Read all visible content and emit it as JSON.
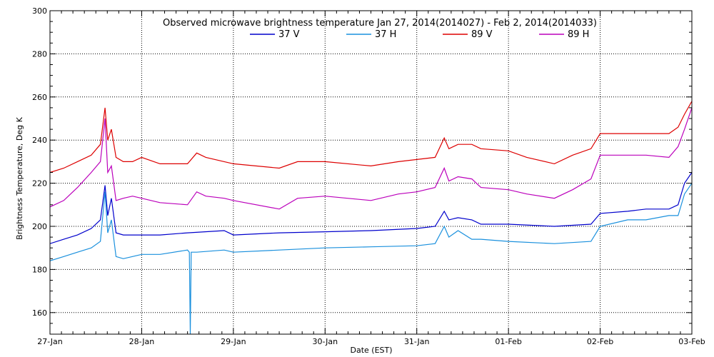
{
  "chart_data": {
    "type": "line",
    "title": "Observed microwave brightness temperature Jan 27, 2014(2014027) - Feb  2, 2014(2014033)",
    "xlabel": "Date (EST)",
    "ylabel": "Brightness Temperature, Deg K",
    "ylim": [
      150,
      300
    ],
    "yticks": [
      160,
      180,
      200,
      220,
      240,
      260,
      280,
      300
    ],
    "xlim": [
      0,
      7
    ],
    "x_tick_labels": [
      "27-Jan",
      "28-Jan",
      "29-Jan",
      "30-Jan",
      "31-Jan",
      "01-Feb",
      "02-Feb",
      "03-Feb"
    ],
    "grid": true,
    "legend_placement": "top-center",
    "x_unit_note": "x values are days since 27-Jan 00:00 EST",
    "series": [
      {
        "name": "37 V",
        "color": "#0000cc",
        "x": [
          0,
          0.15,
          0.3,
          0.45,
          0.55,
          0.6,
          0.63,
          0.67,
          0.72,
          0.8,
          0.9,
          1.0,
          1.2,
          1.5,
          1.9,
          2.0,
          2.5,
          3.0,
          3.5,
          4.0,
          4.2,
          4.3,
          4.35,
          4.45,
          4.6,
          4.7,
          5.0,
          5.5,
          5.9,
          6.0,
          6.3,
          6.5,
          6.75,
          6.85,
          6.92,
          7.0
        ],
        "y": [
          192,
          194,
          196,
          199,
          203,
          219,
          205,
          213,
          197,
          196,
          196,
          196,
          196,
          197,
          198,
          196,
          197,
          197.5,
          198,
          199,
          200,
          207,
          203,
          204,
          203,
          201,
          201,
          200,
          201,
          206,
          207,
          208,
          208,
          210,
          220,
          225
        ]
      },
      {
        "name": "37 H",
        "color": "#1a90dd",
        "x": [
          0,
          0.15,
          0.3,
          0.45,
          0.55,
          0.6,
          0.63,
          0.67,
          0.72,
          0.8,
          0.9,
          1.0,
          1.2,
          1.5,
          1.52,
          1.53,
          1.54,
          1.6,
          1.9,
          2.0,
          2.5,
          3.0,
          3.5,
          4.0,
          4.2,
          4.3,
          4.35,
          4.45,
          4.6,
          4.7,
          5.0,
          5.5,
          5.9,
          6.0,
          6.3,
          6.5,
          6.75,
          6.85,
          6.92,
          7.0
        ],
        "y": [
          184,
          186,
          188,
          190,
          193,
          216,
          197,
          203,
          186,
          185,
          186,
          187,
          187,
          189,
          188,
          150,
          188,
          188,
          189,
          188,
          189,
          190,
          190.5,
          191,
          192,
          200,
          195,
          198,
          194,
          194,
          193,
          192,
          193,
          200,
          203,
          203,
          205,
          205,
          215,
          220
        ]
      },
      {
        "name": "89 V",
        "color": "#dd0000",
        "x": [
          0,
          0.15,
          0.3,
          0.45,
          0.55,
          0.6,
          0.63,
          0.67,
          0.72,
          0.8,
          0.9,
          1.0,
          1.2,
          1.5,
          1.6,
          1.7,
          1.9,
          2.0,
          2.5,
          2.7,
          3.0,
          3.5,
          3.8,
          4.0,
          4.2,
          4.3,
          4.35,
          4.45,
          4.6,
          4.7,
          5.0,
          5.2,
          5.5,
          5.7,
          5.9,
          6.0,
          6.3,
          6.5,
          6.75,
          6.85,
          6.92,
          7.0
        ],
        "y": [
          225,
          227,
          230,
          233,
          238,
          255,
          240,
          245,
          232,
          230,
          230,
          232,
          229,
          229,
          234,
          232,
          230,
          229,
          227,
          230,
          230,
          228,
          230,
          231,
          232,
          241,
          236,
          238,
          238,
          236,
          235,
          232,
          229,
          233,
          236,
          243,
          243,
          243,
          243,
          246,
          252,
          258
        ]
      },
      {
        "name": "89 H",
        "color": "#bb00bb",
        "x": [
          0,
          0.15,
          0.3,
          0.45,
          0.55,
          0.6,
          0.63,
          0.67,
          0.72,
          0.8,
          0.9,
          1.0,
          1.2,
          1.5,
          1.6,
          1.7,
          1.9,
          2.0,
          2.5,
          2.7,
          3.0,
          3.5,
          3.8,
          4.0,
          4.2,
          4.3,
          4.35,
          4.45,
          4.6,
          4.7,
          5.0,
          5.2,
          5.5,
          5.7,
          5.9,
          6.0,
          6.3,
          6.5,
          6.75,
          6.85,
          6.92,
          7.0
        ],
        "y": [
          209,
          212,
          218,
          225,
          230,
          250,
          225,
          228,
          212,
          213,
          214,
          213,
          211,
          210,
          216,
          214,
          213,
          212,
          208,
          213,
          214,
          212,
          215,
          216,
          218,
          227,
          221,
          223,
          222,
          218,
          217,
          215,
          213,
          217,
          222,
          233,
          233,
          233,
          232,
          237,
          245,
          255
        ]
      }
    ]
  }
}
